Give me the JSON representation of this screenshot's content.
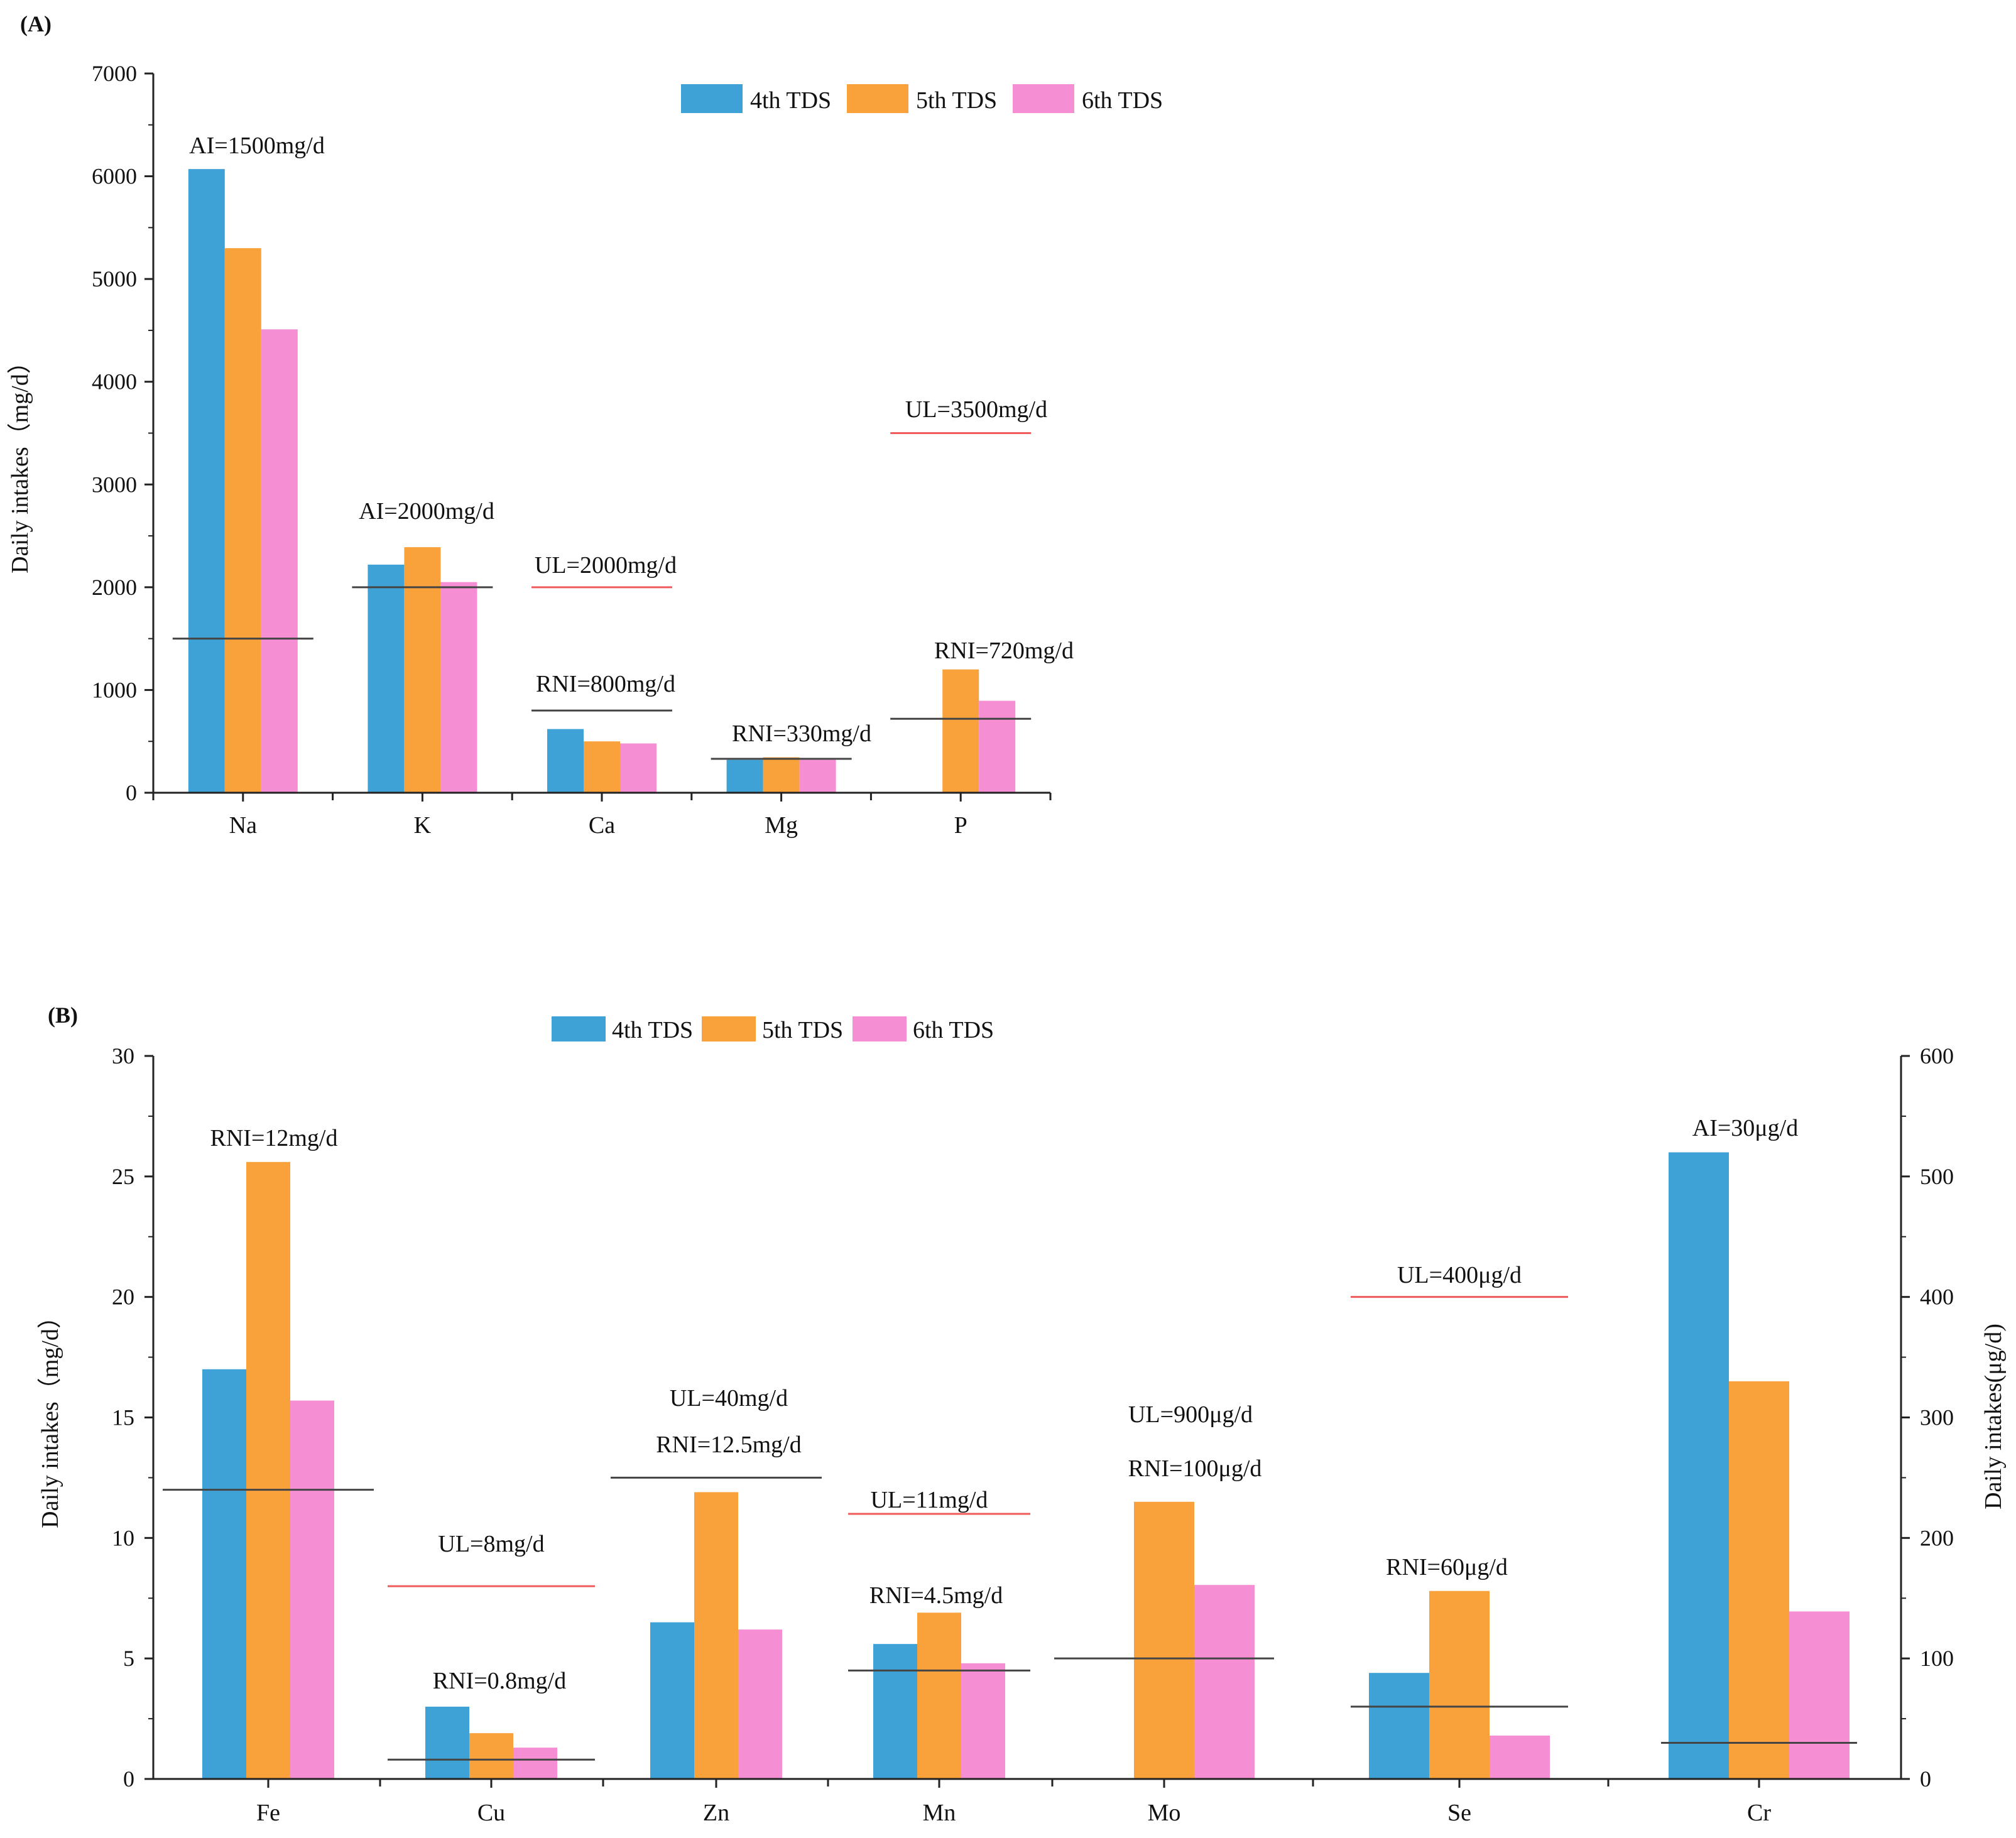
{
  "chart_data": [
    {
      "panel_label": "(A)",
      "type": "bar",
      "categories": [
        "Na",
        "K",
        "Ca",
        "Mg",
        "P"
      ],
      "series": [
        {
          "name": "4th TDS",
          "color": "#3fa2d6",
          "values": [
            6070,
            2220,
            620,
            320,
            null
          ]
        },
        {
          "name": "5th TDS",
          "color": "#f9a23b",
          "values": [
            5300,
            2390,
            500,
            345,
            1200
          ]
        },
        {
          "name": "6th TDS",
          "color": "#f68ed3",
          "values": [
            4510,
            2050,
            480,
            320,
            895
          ]
        }
      ],
      "ylabel": "Daily intakes（mg/d）",
      "ylim": [
        0,
        7000
      ],
      "yticks": [
        "0",
        "1000",
        "2000",
        "3000",
        "4000",
        "5000",
        "6000",
        "7000"
      ],
      "legend": "top-center",
      "reference_lines": [
        {
          "category": "Na",
          "value": 1500,
          "color": "#444444",
          "label": "AI=1500mg/d"
        },
        {
          "category": "K",
          "value": 2000,
          "color": "#444444",
          "label": "AI=2000mg/d"
        },
        {
          "category": "Ca",
          "value": 2000,
          "color": "#ef5a5a",
          "label": "UL=2000mg/d"
        },
        {
          "category": "Ca",
          "value": 800,
          "color": "#444444",
          "label": "RNI=800mg/d"
        },
        {
          "category": "Mg",
          "value": 330,
          "color": "#444444",
          "label": "RNI=330mg/d"
        },
        {
          "category": "P",
          "value": 3500,
          "color": "#ef5a5a",
          "label": "UL=3500mg/d"
        },
        {
          "category": "P",
          "value": 720,
          "color": "#444444",
          "label": "RNI=720mg/d"
        }
      ]
    },
    {
      "panel_label": "(B)",
      "type": "bar",
      "categories": [
        "Fe",
        "Cu",
        "Zn",
        "Mn",
        "Mo",
        "Se",
        "Cr"
      ],
      "axis_assignment": [
        "left",
        "left",
        "left",
        "left",
        "right",
        "right",
        "right"
      ],
      "series": [
        {
          "name": "4th TDS",
          "color": "#3fa2d6",
          "values": [
            17,
            3,
            6.5,
            5.6,
            null,
            88,
            520
          ]
        },
        {
          "name": "5th TDS",
          "color": "#f9a23b",
          "values": [
            25.6,
            1.9,
            11.9,
            6.9,
            230,
            156,
            330
          ]
        },
        {
          "name": "6th TDS",
          "color": "#f68ed3",
          "values": [
            15.7,
            1.3,
            6.2,
            4.8,
            161,
            36,
            139
          ]
        }
      ],
      "ylabel": "Daily intakes（mg/d）",
      "ylim": [
        0,
        30
      ],
      "yticks": [
        "0",
        "5",
        "10",
        "15",
        "20",
        "25",
        "30"
      ],
      "ylabel_right": "Daily intakes(μg/d)",
      "ylim_right": [
        0,
        600
      ],
      "yticks_right": [
        "0",
        "100",
        "200",
        "300",
        "400",
        "500",
        "600"
      ],
      "legend": "top-left",
      "reference_lines": [
        {
          "category": "Fe",
          "value": 12,
          "color": "#444444",
          "label": "RNI=12mg/d"
        },
        {
          "category": "Cu",
          "value": 8,
          "color": "#ef5a5a",
          "label": "UL=8mg/d"
        },
        {
          "category": "Cu",
          "value": 0.8,
          "color": "#444444",
          "label": "RNI=0.8mg/d"
        },
        {
          "category": "Zn",
          "value": 40,
          "color": "#ef5a5a",
          "label": "UL=40mg/d",
          "line_drawn": false
        },
        {
          "category": "Zn",
          "value": 12.5,
          "color": "#444444",
          "label": "RNI=12.5mg/d"
        },
        {
          "category": "Mn",
          "value": 11,
          "color": "#ef5a5a",
          "label": "UL=11mg/d"
        },
        {
          "category": "Mn",
          "value": 4.5,
          "color": "#444444",
          "label": "RNI=4.5mg/d"
        },
        {
          "category": "Mo",
          "value": 900,
          "color": "#ef5a5a",
          "label": "UL=900μg/d",
          "line_drawn": false
        },
        {
          "category": "Mo",
          "value": 100,
          "color": "#444444",
          "label": "RNI=100μg/d"
        },
        {
          "category": "Se",
          "value": 400,
          "color": "#ef5a5a",
          "label": "UL=400μg/d"
        },
        {
          "category": "Se",
          "value": 60,
          "color": "#444444",
          "label": "RNI=60μg/d"
        },
        {
          "category": "Cr",
          "value": 30,
          "color": "#444444",
          "label": "AI=30μg/d"
        }
      ]
    }
  ]
}
